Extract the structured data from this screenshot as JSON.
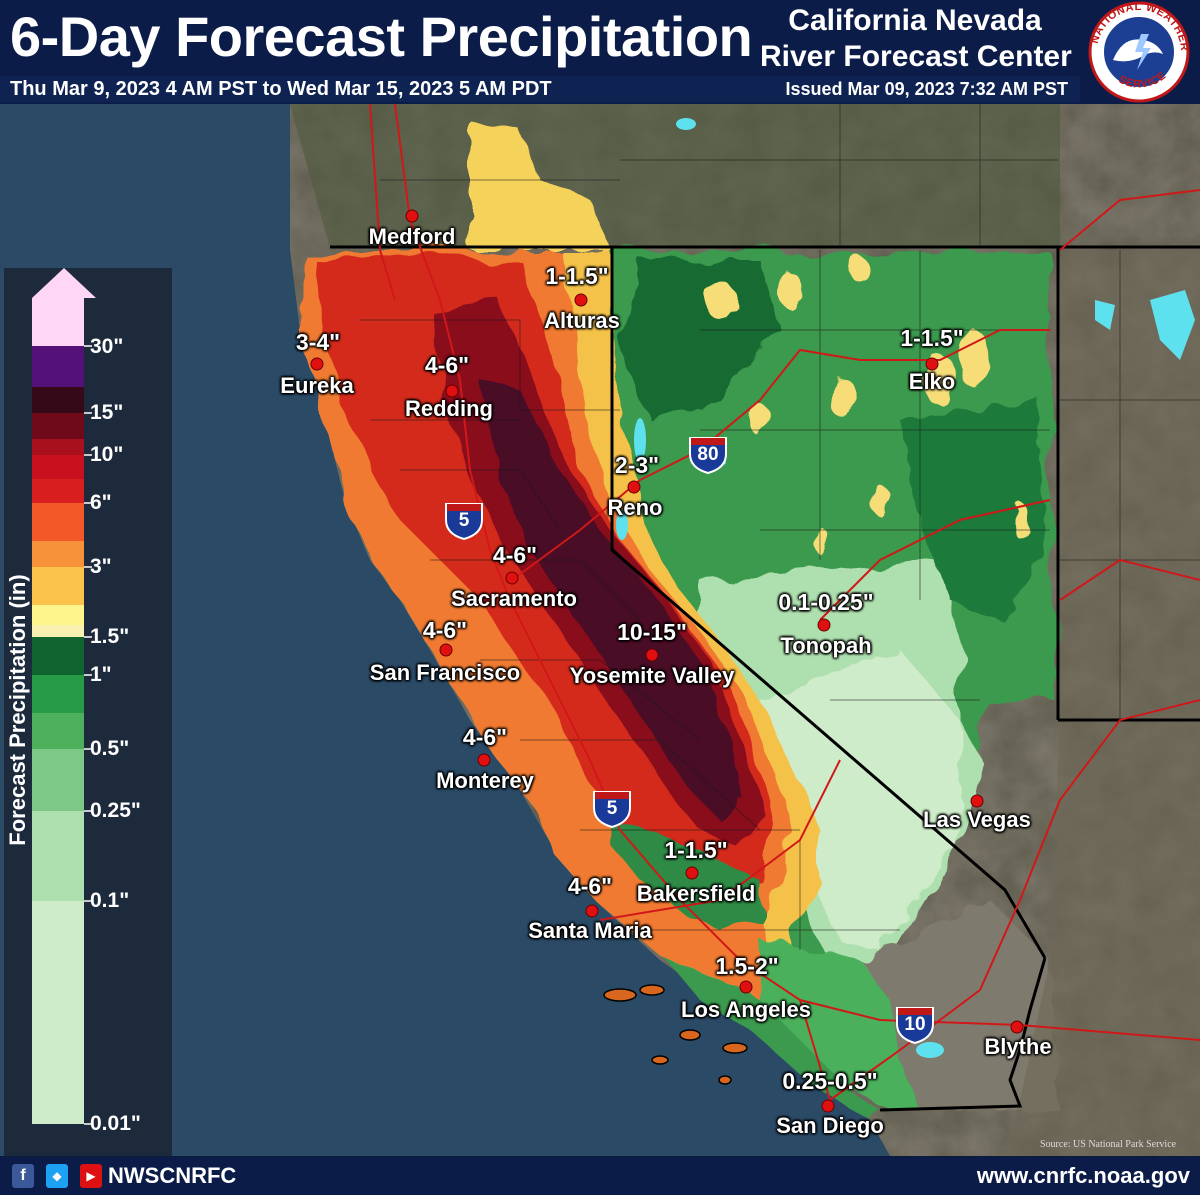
{
  "header": {
    "title": "6-Day Forecast Precipitation",
    "org_line1": "California Nevada",
    "org_line2": "River Forecast Center",
    "valid_period": "Thu Mar 9, 2023 4 AM PST to Wed Mar 15, 2023 5 AM PDT",
    "issued": "Issued Mar 09, 2023 7:32 AM PST",
    "logo_text": "NATIONAL WEATHER SERVICE"
  },
  "legend": {
    "title": "Forecast Precipitation (in)",
    "labels": [
      "30\"",
      "15\"",
      "10\"",
      "6\"",
      "3\"",
      "1.5\"",
      "1\"",
      "0.5\"",
      "0.25\"",
      "0.1\"",
      "0.01\""
    ],
    "colors": [
      "#ffd6f5",
      "#55117a",
      "#350918",
      "#6e0a1a",
      "#a8101e",
      "#d81e1e",
      "#f25828",
      "#f7913a",
      "#fbc24c",
      "#fbf58c",
      "#0f6430",
      "#279a46",
      "#4cb05c",
      "#7dc886",
      "#aedfae",
      "#cfecca"
    ]
  },
  "cities": [
    {
      "name": "Medford",
      "amount": ""
    },
    {
      "name": "Alturas",
      "amount": "1-1.5\""
    },
    {
      "name": "Eureka",
      "amount": "3-4\""
    },
    {
      "name": "Redding",
      "amount": "4-6\""
    },
    {
      "name": "Elko",
      "amount": "1-1.5\""
    },
    {
      "name": "Reno",
      "amount": "2-3\""
    },
    {
      "name": "Sacramento",
      "amount": "4-6\""
    },
    {
      "name": "San Francisco",
      "amount": "4-6\""
    },
    {
      "name": "Yosemite Valley",
      "amount": "10-15\""
    },
    {
      "name": "Tonopah",
      "amount": "0.1-0.25\""
    },
    {
      "name": "Monterey",
      "amount": "4-6\""
    },
    {
      "name": "Las Vegas",
      "amount": ""
    },
    {
      "name": "Bakersfield",
      "amount": "1-1.5\""
    },
    {
      "name": "Santa Maria",
      "amount": "4-6\""
    },
    {
      "name": "Los Angeles",
      "amount": "1.5-2\""
    },
    {
      "name": "Blythe",
      "amount": ""
    },
    {
      "name": "San Diego",
      "amount": "0.25-0.5\""
    }
  ],
  "highways": [
    "5",
    "5",
    "80",
    "10"
  ],
  "source": "Source: US National Park Service",
  "footer": {
    "social_handle": "NWSCNRFC",
    "website": "www.cnrfc.noaa.gov"
  }
}
